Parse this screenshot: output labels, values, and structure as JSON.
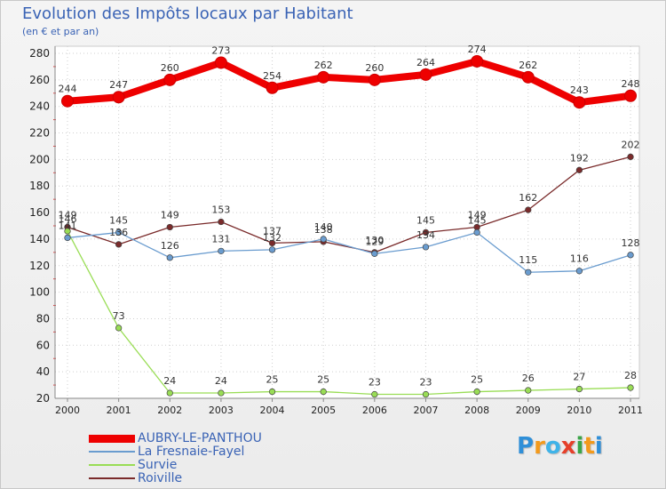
{
  "chart_data": {
    "type": "line",
    "title": "Evolution des Impôts locaux par Habitant",
    "subtitle": "(en € et par an)",
    "xlabel": "",
    "ylabel": "",
    "categories": [
      "2000",
      "2001",
      "2002",
      "2003",
      "2004",
      "2005",
      "2006",
      "2007",
      "2008",
      "2009",
      "2010",
      "2011"
    ],
    "ylim": [
      20,
      280
    ],
    "yticks": [
      20,
      40,
      60,
      80,
      100,
      120,
      140,
      160,
      180,
      200,
      220,
      240,
      260,
      280
    ],
    "grid": true,
    "legend_position": "bottom-left",
    "series": [
      {
        "name": "AUBRY-LE-PANTHOU",
        "color": "#ee0000",
        "values": [
          244,
          247,
          260,
          273,
          254,
          262,
          260,
          264,
          274,
          262,
          243,
          248
        ]
      },
      {
        "name": "La Fresnaie-Fayel",
        "color": "#6a9ccf",
        "values": [
          141,
          145,
          126,
          131,
          132,
          140,
          129,
          134,
          145,
          115,
          116,
          128
        ]
      },
      {
        "name": "Survie",
        "color": "#99dd55",
        "values": [
          146,
          73,
          24,
          24,
          25,
          25,
          23,
          23,
          25,
          26,
          27,
          28
        ]
      },
      {
        "name": "Roiville",
        "color": "#7a2b2b",
        "values": [
          149,
          136,
          149,
          153,
          137,
          138,
          130,
          145,
          149,
          162,
          192,
          202
        ]
      }
    ]
  },
  "logo": {
    "letters": [
      "P",
      "r",
      "o",
      "x",
      "i",
      "t",
      "i"
    ],
    "colors": [
      "#2f8fd8",
      "#f39a1c",
      "#3fb3e8",
      "#e6402a",
      "#3aa548",
      "#f39a1c",
      "#2f8fd8"
    ]
  }
}
